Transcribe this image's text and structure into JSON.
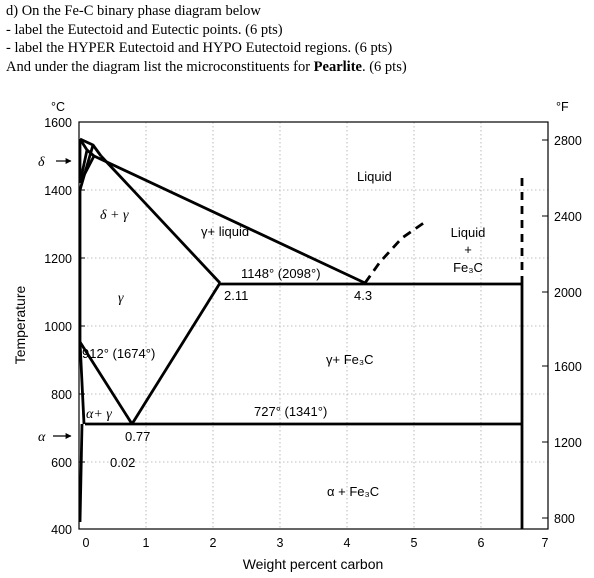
{
  "question": {
    "line1": "d) On the Fe-C binary phase diagram below",
    "line2": "- label the Eutectoid and Eutectic points. (6 pts)",
    "line3": "- label the HYPER Eutectoid and HYPO Eutectoid regions. (6 pts)",
    "line4_prefix": "And under the diagram list the microconstituents for ",
    "line4_bold": "Pearlite",
    "line4_suffix": ". (6 pts)"
  },
  "axes": {
    "x_title": "Weight percent carbon",
    "y_title": "Temperature",
    "left_unit": "°C",
    "right_unit": "°F",
    "x_ticks": [
      "0",
      "1",
      "2",
      "3",
      "4",
      "5",
      "6",
      "7"
    ],
    "y_ticks_c": [
      "400",
      "600",
      "800",
      "1000",
      "1200",
      "1400",
      "1600"
    ],
    "y_ticks_f": [
      "800",
      "1200",
      "1600",
      "2000",
      "2400",
      "2800"
    ]
  },
  "phases": {
    "delta": "δ",
    "delta_gamma": "δ + γ",
    "gamma_liquid": "γ+ liquid",
    "liquid": "Liquid",
    "gamma": "γ",
    "liquid_fe3c_1": "Liquid",
    "liquid_fe3c_2": "+",
    "liquid_fe3c_3": "Fe₃C",
    "gamma_fe3c": "γ+ Fe₃C",
    "alpha_gamma": "α+ γ",
    "alpha": "α",
    "alpha_fe3c": "α + Fe₃C"
  },
  "annotations": {
    "eutectic_temp": "1148° (2098°)",
    "pt_211": "2.11",
    "pt_43": "4.3",
    "temp_912": "912° (1674°)",
    "eutectoid_temp": "727° (1341°)",
    "pt_077": "0.77",
    "pt_002": "0.02"
  }
}
